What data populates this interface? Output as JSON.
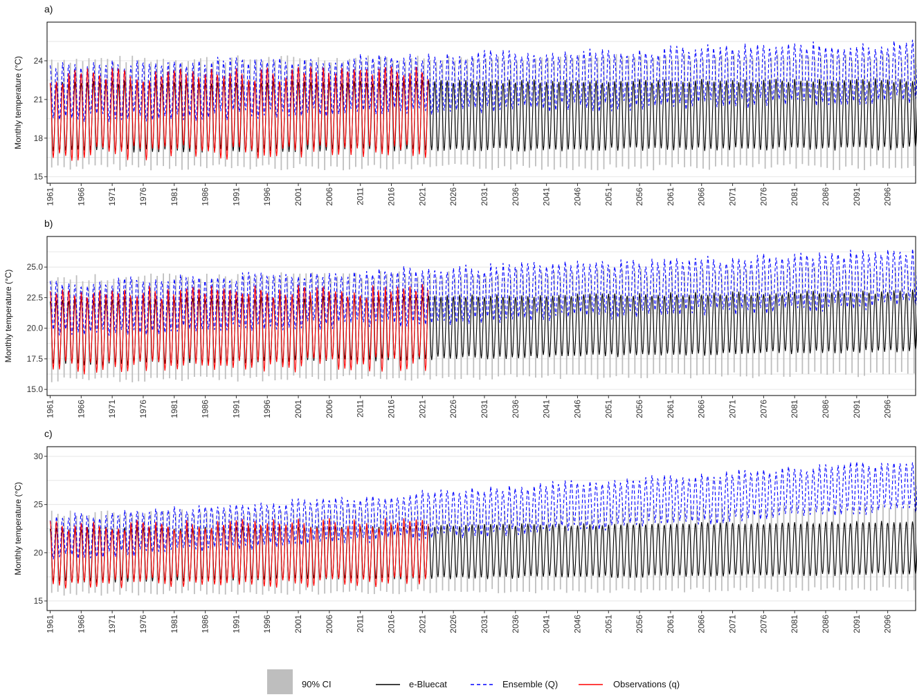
{
  "chart_data": [
    {
      "type": "line",
      "panel_label": "a)",
      "ylabel": "Monthly temperature (°C)",
      "ylim": [
        14.5,
        27
      ],
      "yticks": [
        15,
        18,
        21,
        24
      ],
      "ytick_labels": [
        "15",
        "18",
        "21",
        "24"
      ],
      "xlim": [
        1960.5,
        2100.5
      ],
      "xticks": [
        1961,
        1966,
        1971,
        1976,
        1981,
        1986,
        1991,
        1996,
        2001,
        2006,
        2011,
        2016,
        2021,
        2026,
        2031,
        2036,
        2041,
        2046,
        2051,
        2056,
        2061,
        2066,
        2071,
        2076,
        2081,
        2086,
        2091,
        2096
      ],
      "grid": true,
      "series": [
        {
          "key": "ci",
          "start_year": 1961,
          "end_year": 2100,
          "summer_low": [
            23.0,
            23.3
          ],
          "summer_high": [
            23.8,
            24.0
          ],
          "winter_low": [
            16.0,
            16.0
          ],
          "winter_high": [
            16.8,
            17.0
          ]
        },
        {
          "key": "bluecat",
          "start_year": 1961,
          "end_year": 2100,
          "summer_peak": [
            22.3,
            22.5
          ],
          "winter_trough": [
            17.0,
            17.2
          ]
        },
        {
          "key": "ensemble",
          "start_year": 1961,
          "end_year": 2100,
          "summer_peak": [
            23.6,
            25.3
          ],
          "winter_trough": [
            19.5,
            21.0
          ]
        },
        {
          "key": "observations",
          "start_year": 1961,
          "end_year": 2021,
          "summer_peak": [
            22.8,
            23.4
          ],
          "winter_trough": [
            16.8,
            17.4
          ]
        }
      ]
    },
    {
      "type": "line",
      "panel_label": "b)",
      "ylabel": "Monthly temperature (°C)",
      "ylim": [
        14.5,
        27.5
      ],
      "yticks": [
        15.0,
        17.5,
        20.0,
        22.5,
        25.0
      ],
      "ytick_labels": [
        "15.0",
        "17.5",
        "20.0",
        "22.5",
        "25.0"
      ],
      "xlim": [
        1960.5,
        2100.5
      ],
      "xticks": [
        1961,
        1966,
        1971,
        1976,
        1981,
        1986,
        1991,
        1996,
        2001,
        2006,
        2011,
        2016,
        2021,
        2026,
        2031,
        2036,
        2041,
        2046,
        2051,
        2056,
        2061,
        2066,
        2071,
        2076,
        2081,
        2086,
        2091,
        2096
      ],
      "grid": true,
      "series": [
        {
          "key": "ci",
          "start_year": 1961,
          "end_year": 2100,
          "summer_low": [
            23.0,
            23.5
          ],
          "summer_high": [
            23.8,
            24.5
          ],
          "winter_low": [
            16.0,
            16.5
          ],
          "winter_high": [
            16.8,
            17.8
          ]
        },
        {
          "key": "bluecat",
          "start_year": 1961,
          "end_year": 2100,
          "summer_peak": [
            22.3,
            23.0
          ],
          "winter_trough": [
            17.0,
            18.2
          ]
        },
        {
          "key": "ensemble",
          "start_year": 1961,
          "end_year": 2100,
          "summer_peak": [
            23.6,
            26.2
          ],
          "winter_trough": [
            19.5,
            22.0
          ]
        },
        {
          "key": "observations",
          "start_year": 1961,
          "end_year": 2021,
          "summer_peak": [
            22.8,
            23.4
          ],
          "winter_trough": [
            16.8,
            17.4
          ]
        }
      ]
    },
    {
      "type": "line",
      "panel_label": "c)",
      "ylabel": "Monthly temperature (°C)",
      "ylim": [
        14,
        31
      ],
      "yticks": [
        15,
        20,
        25,
        30
      ],
      "ytick_labels": [
        "15",
        "20",
        "25",
        "30"
      ],
      "xlim": [
        1960.5,
        2100.5
      ],
      "xticks": [
        1961,
        1966,
        1971,
        1976,
        1981,
        1986,
        1991,
        1996,
        2001,
        2006,
        2011,
        2016,
        2021,
        2026,
        2031,
        2036,
        2041,
        2046,
        2051,
        2056,
        2061,
        2066,
        2071,
        2076,
        2081,
        2086,
        2091,
        2096
      ],
      "grid": true,
      "series": [
        {
          "key": "ci",
          "start_year": 1961,
          "end_year": 2100,
          "summer_low": [
            23.0,
            23.5
          ],
          "summer_high": [
            23.8,
            24.5
          ],
          "winter_low": [
            16.0,
            16.5
          ],
          "winter_high": [
            16.8,
            17.8
          ]
        },
        {
          "key": "bluecat",
          "start_year": 1961,
          "end_year": 2100,
          "summer_peak": [
            22.5,
            23.2
          ],
          "winter_trough": [
            17.0,
            17.8
          ]
        },
        {
          "key": "ensemble",
          "start_year": 1961,
          "end_year": 2100,
          "summer_peak": [
            23.6,
            29.5
          ],
          "winter_trough": [
            19.5,
            24.5
          ]
        },
        {
          "key": "observations",
          "start_year": 1961,
          "end_year": 2021,
          "summer_peak": [
            22.8,
            23.4
          ],
          "winter_trough": [
            16.8,
            17.4
          ]
        }
      ]
    }
  ],
  "legend": {
    "items": [
      {
        "key": "ci",
        "label": "90% CI",
        "color": "#bebebe",
        "style": "fill"
      },
      {
        "key": "bluecat",
        "label": "e-Bluecat",
        "color": "#000000",
        "style": "solid"
      },
      {
        "key": "ensemble",
        "label": "Ensemble (Q)",
        "color": "#0000ff",
        "style": "dashed"
      },
      {
        "key": "observations",
        "label": "Observations (q)",
        "color": "#ff0000",
        "style": "solid"
      }
    ]
  }
}
